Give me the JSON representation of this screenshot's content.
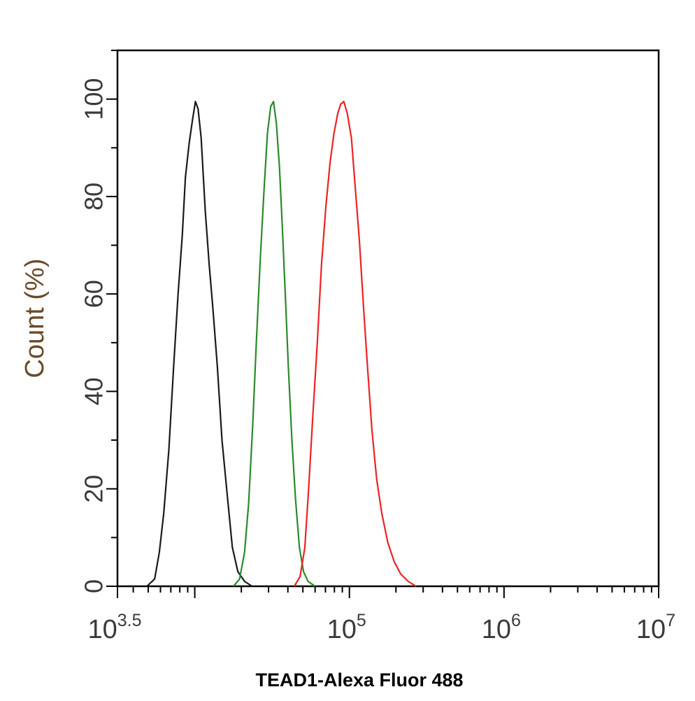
{
  "chart_data": {
    "type": "line",
    "xlabel": "TEAD1-Alexa Fluor 488",
    "ylabel": "Count (%)",
    "x_scale": "log10",
    "xlim": [
      3162.3,
      10000000
    ],
    "ylim": [
      0,
      110
    ],
    "y_ticks": [
      0,
      20,
      40,
      60,
      80,
      100
    ],
    "x_ticks": [
      {
        "value": 3162.3,
        "base": "10",
        "exp": "3.5"
      },
      {
        "value": 100000,
        "base": "10",
        "exp": "5"
      },
      {
        "value": 1000000,
        "base": "10",
        "exp": "6"
      },
      {
        "value": 10000000,
        "base": "10",
        "exp": "7"
      }
    ],
    "grid": false,
    "series": [
      {
        "color": "#1a1a1a",
        "points": [
          [
            4900,
            0
          ],
          [
            5500,
            1.5
          ],
          [
            5900,
            7
          ],
          [
            6300,
            15
          ],
          [
            6800,
            28
          ],
          [
            7300,
            45
          ],
          [
            7800,
            60
          ],
          [
            8300,
            72
          ],
          [
            8700,
            84
          ],
          [
            9200,
            91
          ],
          [
            9700,
            96
          ],
          [
            10100,
            99.5
          ],
          [
            10500,
            98
          ],
          [
            11000,
            92
          ],
          [
            11700,
            77
          ],
          [
            12400,
            66
          ],
          [
            13100,
            57
          ],
          [
            14000,
            45
          ],
          [
            15000,
            30
          ],
          [
            16300,
            18
          ],
          [
            17500,
            8
          ],
          [
            19000,
            3
          ],
          [
            21000,
            1
          ],
          [
            23500,
            0
          ]
        ]
      },
      {
        "color": "#2a8a2a",
        "points": [
          [
            17800,
            0
          ],
          [
            19500,
            1.5
          ],
          [
            21000,
            7
          ],
          [
            22300,
            17
          ],
          [
            23700,
            33
          ],
          [
            25000,
            50
          ],
          [
            26500,
            67
          ],
          [
            28000,
            81
          ],
          [
            29500,
            93
          ],
          [
            31000,
            98.5
          ],
          [
            32300,
            99.5
          ],
          [
            33700,
            95
          ],
          [
            35300,
            86
          ],
          [
            36800,
            74
          ],
          [
            38500,
            60
          ],
          [
            40300,
            45
          ],
          [
            42500,
            30
          ],
          [
            44800,
            18
          ],
          [
            47500,
            8
          ],
          [
            50500,
            3
          ],
          [
            54000,
            1
          ],
          [
            60000,
            0
          ]
        ]
      },
      {
        "color": "#ee2222",
        "points": [
          [
            44000,
            0
          ],
          [
            48000,
            2
          ],
          [
            51500,
            8
          ],
          [
            54500,
            20
          ],
          [
            58000,
            35
          ],
          [
            62000,
            50
          ],
          [
            66000,
            66
          ],
          [
            70500,
            78
          ],
          [
            75000,
            87
          ],
          [
            79500,
            93
          ],
          [
            84000,
            97
          ],
          [
            88000,
            99
          ],
          [
            92000,
            99.5
          ],
          [
            97000,
            97
          ],
          [
            103000,
            92
          ],
          [
            109000,
            82
          ],
          [
            116000,
            71
          ],
          [
            123000,
            58
          ],
          [
            131000,
            45
          ],
          [
            140000,
            32
          ],
          [
            150000,
            22
          ],
          [
            162000,
            15
          ],
          [
            177000,
            9
          ],
          [
            195000,
            5
          ],
          [
            215000,
            2.5
          ],
          [
            240000,
            1
          ],
          [
            270000,
            0
          ]
        ]
      }
    ]
  }
}
